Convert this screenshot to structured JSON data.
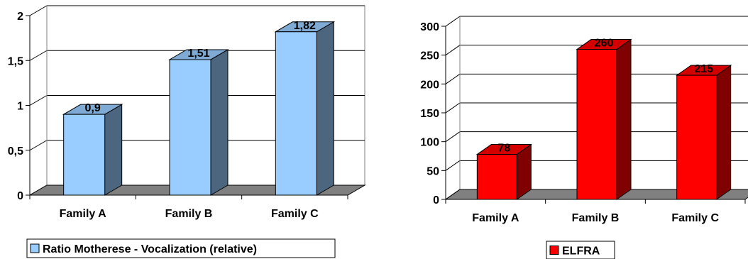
{
  "chart_data": [
    {
      "type": "bar",
      "categories": [
        "Family A",
        "Family B",
        "Family C"
      ],
      "series": [
        {
          "name": "Ratio Motherese - Vocalization (relative)",
          "values": [
            0.9,
            1.51,
            1.82
          ],
          "data_labels": [
            "0,9",
            "1,51",
            "1,82"
          ],
          "colors": {
            "front": "#99CCFF",
            "top": "#7FAAD4",
            "side": "#4D6680"
          }
        }
      ],
      "ylim": [
        0,
        2
      ],
      "yticks": [
        0,
        0.5,
        1,
        1.5,
        2
      ],
      "ytick_labels": [
        "0",
        "0,5",
        "1",
        "1,5",
        "2"
      ],
      "grid": true,
      "legend": "bottom"
    },
    {
      "type": "bar",
      "categories": [
        "Family A",
        "Family B",
        "Family C"
      ],
      "series": [
        {
          "name": "ELFRA",
          "values": [
            78,
            260,
            215
          ],
          "data_labels": [
            "78",
            "260",
            "215"
          ],
          "colors": {
            "front": "#FF0000",
            "top": "#D40000",
            "side": "#800000"
          }
        }
      ],
      "ylim": [
        0,
        300
      ],
      "yticks": [
        0,
        50,
        100,
        150,
        200,
        250,
        300
      ],
      "ytick_labels": [
        "0",
        "50",
        "100",
        "150",
        "200",
        "250",
        "300"
      ],
      "grid": true,
      "legend": "bottom"
    }
  ]
}
